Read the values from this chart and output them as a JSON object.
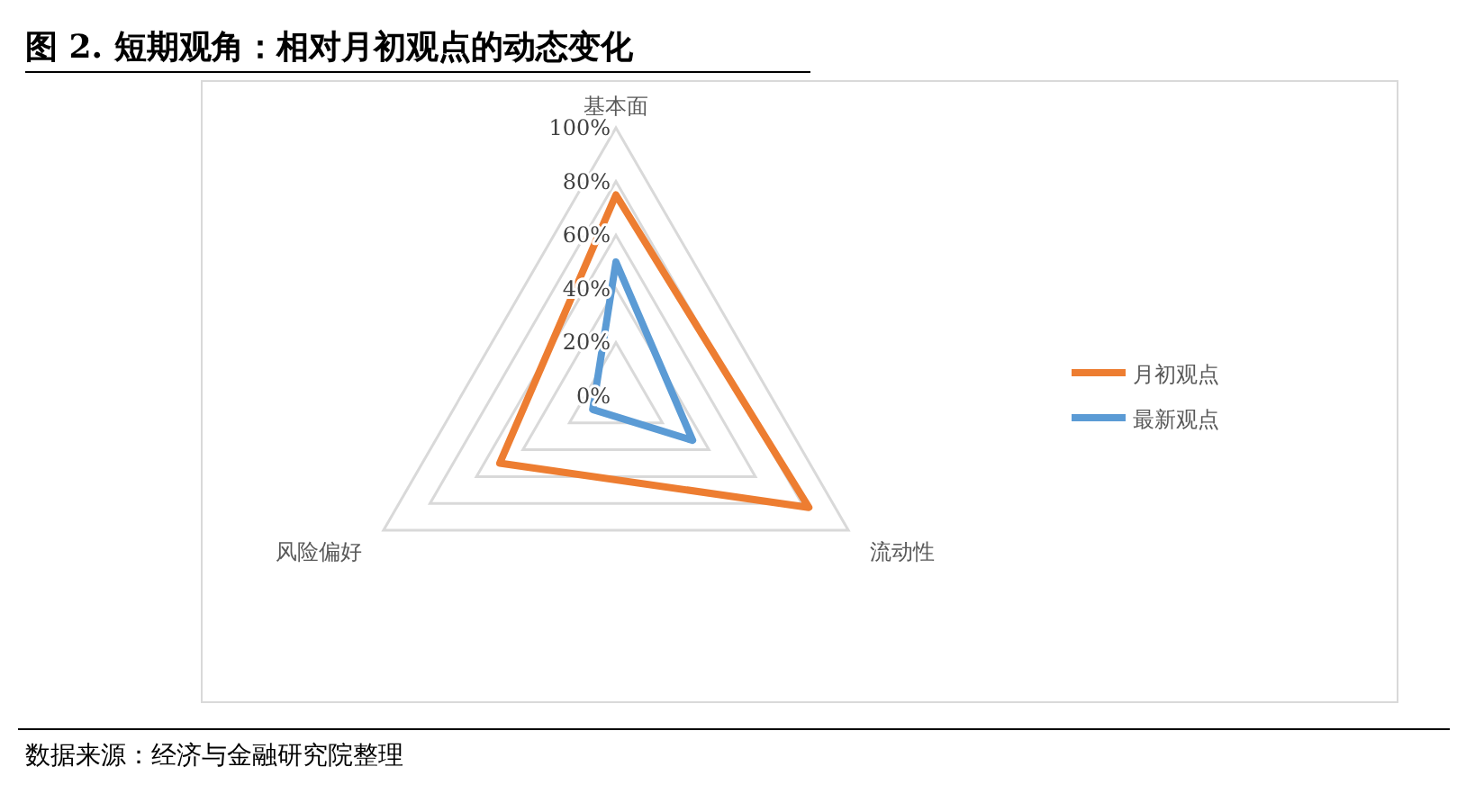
{
  "chart_data": {
    "type": "radar",
    "title": "图 2. 短期观角：相对月初观点的动态变化",
    "categories": [
      "基本面",
      "流动性",
      "风险偏好"
    ],
    "series": [
      {
        "name": "月初观点",
        "color": "#ed7d31",
        "values": [
          75,
          83,
          50
        ]
      },
      {
        "name": "最新观点",
        "color": "#5b9bd5",
        "values": [
          50,
          33,
          10
        ]
      }
    ],
    "ylim": [
      0,
      100
    ],
    "yticks": [
      {
        "value": 0,
        "label": "0%"
      },
      {
        "value": 20,
        "label": "20%"
      },
      {
        "value": 40,
        "label": "40%"
      },
      {
        "value": 60,
        "label": "60%"
      },
      {
        "value": 80,
        "label": "80%"
      },
      {
        "value": 100,
        "label": "100%"
      }
    ],
    "grid": true,
    "legend": "right",
    "annotations": [
      "数据来源：经济与金融研究院整理"
    ]
  }
}
